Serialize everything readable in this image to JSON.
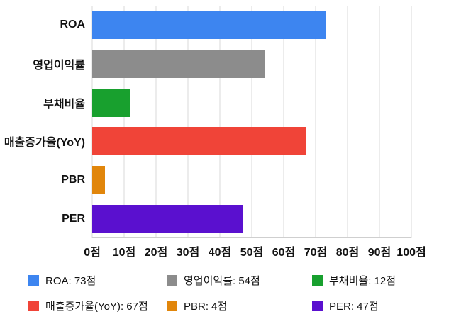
{
  "chart_data": {
    "type": "bar",
    "orientation": "horizontal",
    "title": "",
    "xlabel": "",
    "ylabel": "",
    "unit": "점",
    "categories": [
      "ROA",
      "영업이익률",
      "부채비율",
      "매출증가율(YoY)",
      "PBR",
      "PER"
    ],
    "values": [
      73,
      54,
      12,
      67,
      4,
      47
    ],
    "colors": [
      "#3d85f0",
      "#8c8c8c",
      "#18a02e",
      "#f04438",
      "#e1860b",
      "#5a10cf"
    ],
    "xlim": [
      0,
      100
    ],
    "x_ticks": [
      0,
      10,
      20,
      30,
      40,
      50,
      60,
      70,
      80,
      90,
      100
    ],
    "x_tick_labels": [
      "0점",
      "10점",
      "20점",
      "30점",
      "40점",
      "50점",
      "60점",
      "70점",
      "80점",
      "90점",
      "100점"
    ],
    "grid": true,
    "legend_position": "bottom"
  },
  "legend": {
    "items": [
      {
        "label": "ROA: 73점",
        "color": "#3d85f0"
      },
      {
        "label": "영업이익률: 54점",
        "color": "#8c8c8c"
      },
      {
        "label": "부채비율: 12점",
        "color": "#18a02e"
      },
      {
        "label": "매출증가율(YoY): 67점",
        "color": "#f04438"
      },
      {
        "label": "PBR: 4점",
        "color": "#e1860b"
      },
      {
        "label": "PER: 47점",
        "color": "#5a10cf"
      }
    ]
  }
}
